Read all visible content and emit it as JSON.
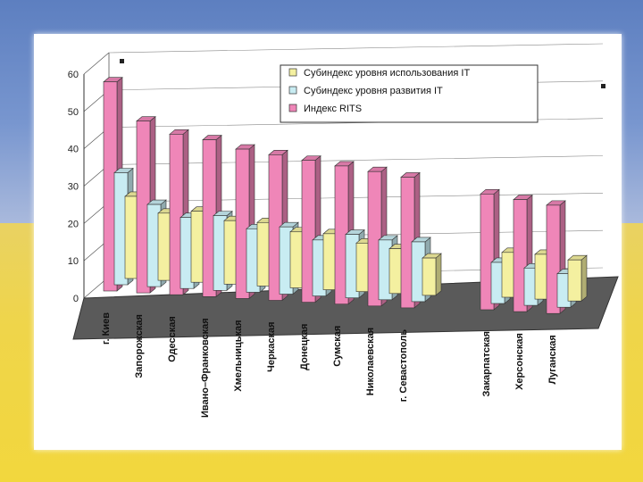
{
  "chart_data": {
    "type": "bar",
    "style": "3d-clustered",
    "ylim": [
      0,
      60
    ],
    "yticks": [
      0,
      10,
      20,
      30,
      40,
      50,
      60
    ],
    "categories": [
      "г. Киев",
      "Запорожская",
      "Одесская",
      "Ивано–Франковская",
      "Хмельницькая",
      "Черкаская",
      "Донецкая",
      "Сумская",
      "Николаевская",
      "г. Севастополь",
      "Закарпатская",
      "Херсонская",
      "Луганская"
    ],
    "series": [
      {
        "name": "Субиндекс уровня использования IT",
        "color": "#f4f0a0",
        "values": [
          22,
          18,
          19,
          17,
          17,
          15,
          15,
          13,
          12,
          10,
          12,
          12,
          11
        ]
      },
      {
        "name": "Субиндекс уровня развития IT",
        "color": "#c8ecf2",
        "values": [
          30,
          22,
          19,
          20,
          17,
          18,
          15,
          17,
          16,
          16,
          11,
          10,
          9
        ]
      },
      {
        "name": "Индекс RITS",
        "color": "#ef86b8",
        "values": [
          56,
          46,
          43,
          42,
          40,
          39,
          38,
          37,
          36,
          35,
          31,
          30,
          29
        ]
      }
    ],
    "legend_position": "top-right"
  },
  "colors": {
    "flag_blue": "#6f8fc9",
    "flag_yellow": "#f0d548",
    "bar_edge": "#333333"
  }
}
